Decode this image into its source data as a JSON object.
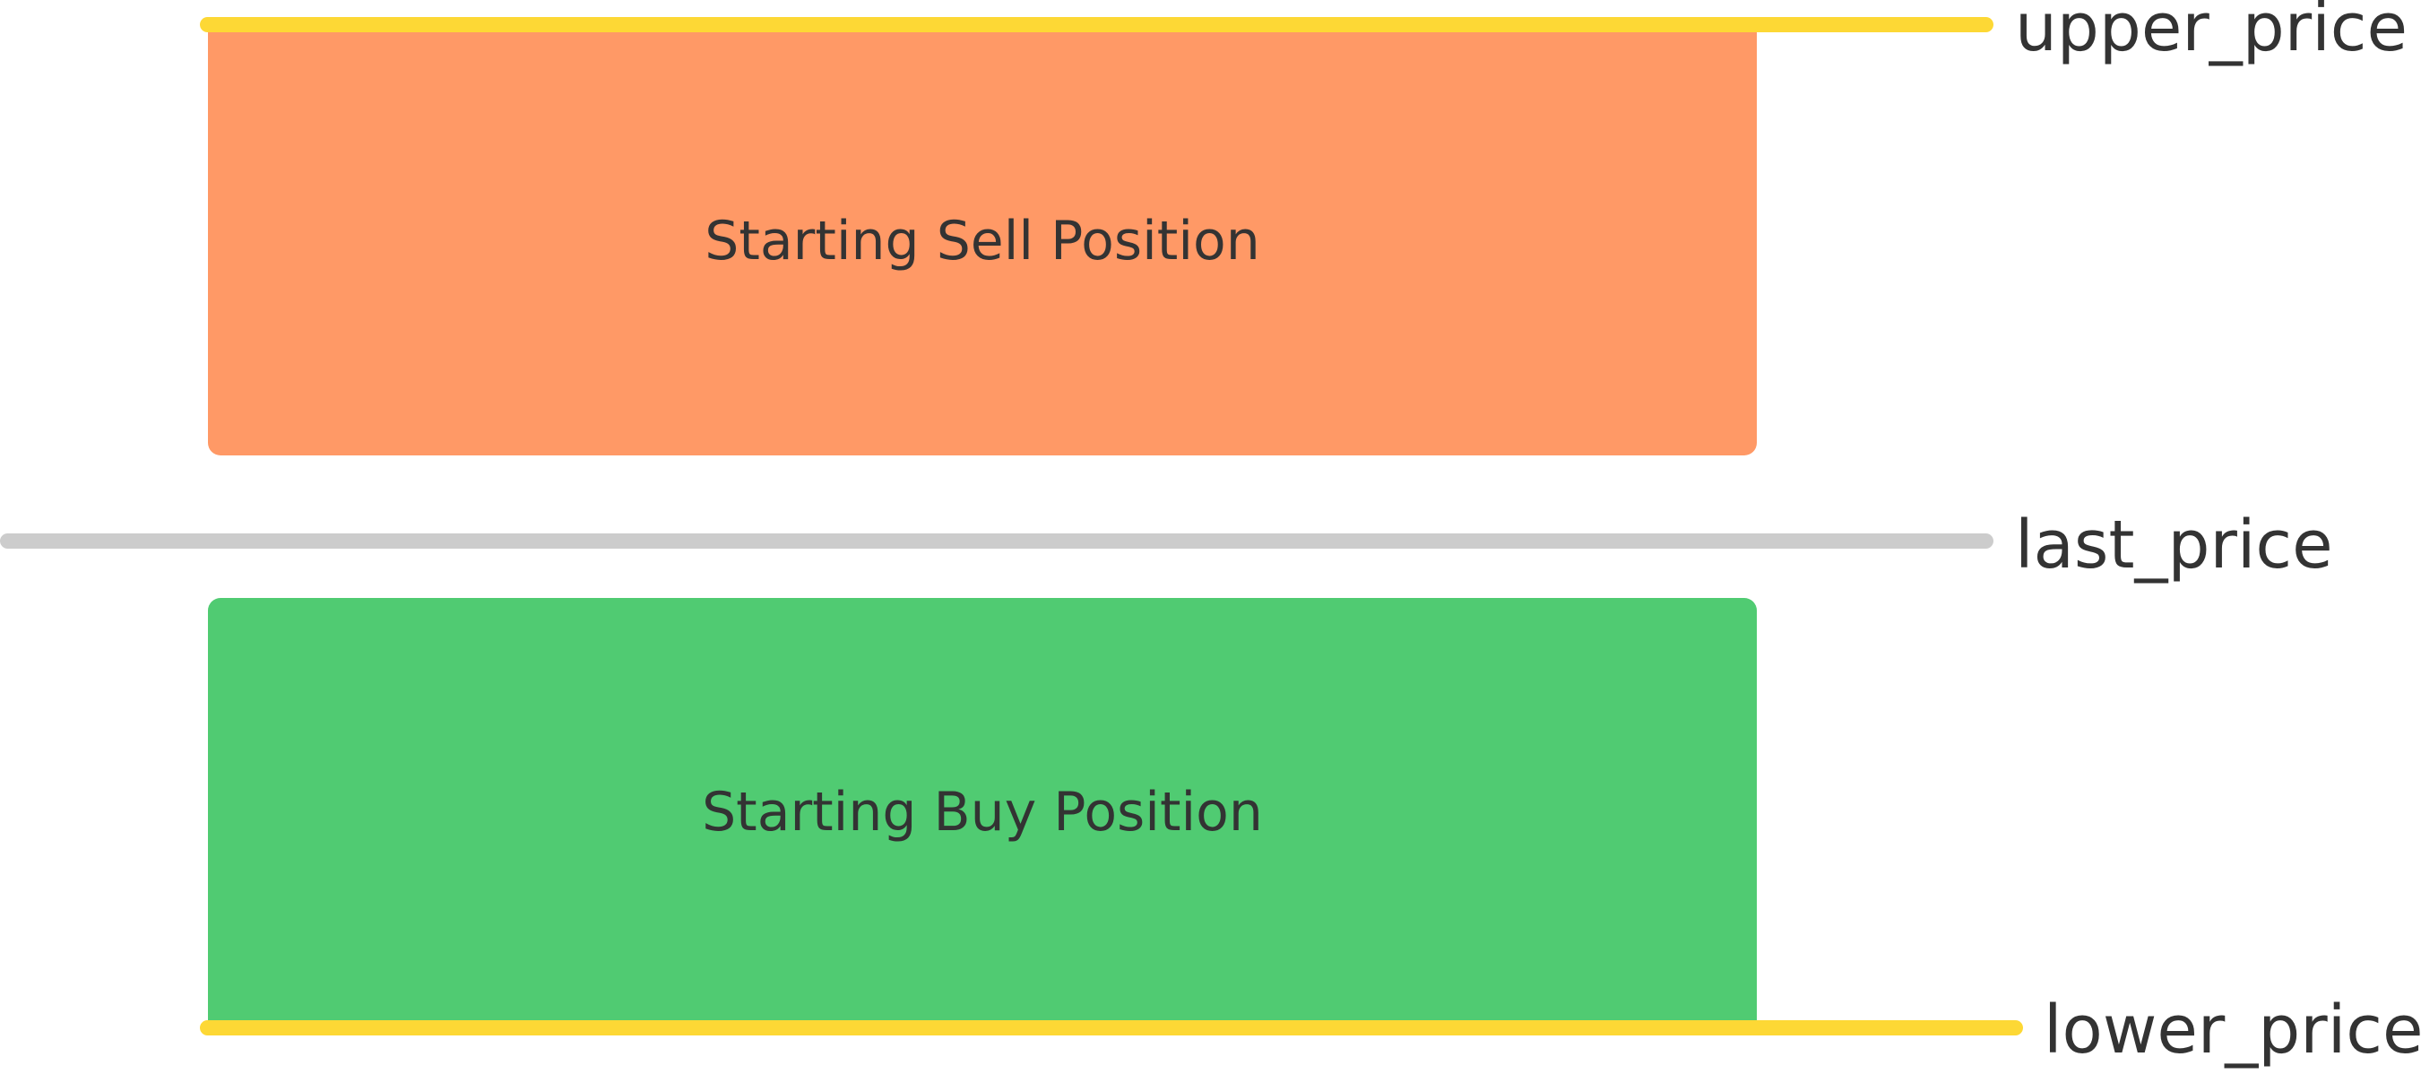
{
  "colors": {
    "sell": "#FF9966",
    "buy": "#50CB72",
    "bound_line": "#FDD835",
    "last_line": "#CCCCCC"
  },
  "blocks": {
    "sell_label": "Starting Sell Position",
    "buy_label": "Starting Buy Position"
  },
  "lines": {
    "upper_label": "upper_price",
    "last_label": "last_price",
    "lower_label": "lower_price"
  }
}
